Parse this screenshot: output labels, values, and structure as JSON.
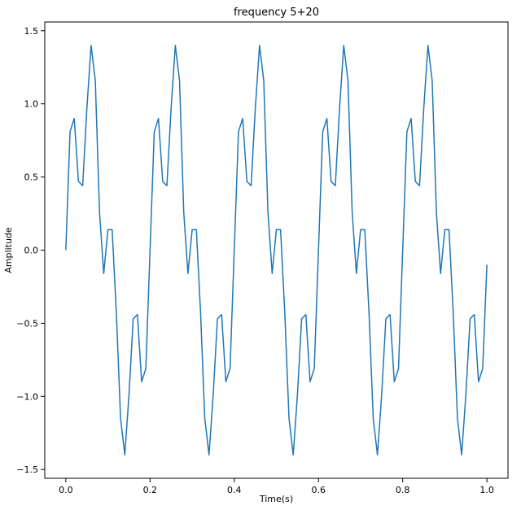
{
  "chart_data": {
    "type": "line",
    "title": "frequency 5+20",
    "xlabel": "Time(s)",
    "ylabel": "Amplitude",
    "xlim": [
      -0.05,
      1.05
    ],
    "ylim": [
      -1.56,
      1.56
    ],
    "x_ticks": [
      0.0,
      0.2,
      0.4,
      0.6,
      0.8,
      1.0
    ],
    "x_tick_labels": [
      "0.0",
      "0.2",
      "0.4",
      "0.6",
      "0.8",
      "1.0"
    ],
    "y_ticks": [
      -1.5,
      -1.0,
      -0.5,
      0.0,
      0.5,
      1.0,
      1.5
    ],
    "y_tick_labels": [
      "−1.5",
      "−1.0",
      "−0.5",
      "0.0",
      "0.5",
      "1.0",
      "1.5"
    ],
    "grid": false,
    "legend": "none",
    "series": [
      {
        "color": "#1f77b4",
        "x": [
          0.0,
          0.01,
          0.02,
          0.03,
          0.04,
          0.05,
          0.06,
          0.07,
          0.08,
          0.09,
          0.1,
          0.11,
          0.12,
          0.13,
          0.14,
          0.15,
          0.16,
          0.17,
          0.18,
          0.19,
          0.2,
          0.21,
          0.22,
          0.23,
          0.24,
          0.25,
          0.26,
          0.27,
          0.28,
          0.29,
          0.3,
          0.31,
          0.32,
          0.33,
          0.34,
          0.35,
          0.36,
          0.37,
          0.38,
          0.39,
          0.4,
          0.41,
          0.42,
          0.43,
          0.44,
          0.45,
          0.46,
          0.47,
          0.48,
          0.49,
          0.5,
          0.51,
          0.52,
          0.53,
          0.54,
          0.55,
          0.56,
          0.57,
          0.58,
          0.59,
          0.6,
          0.61,
          0.62,
          0.63,
          0.64,
          0.65,
          0.66,
          0.67,
          0.68,
          0.69,
          0.7,
          0.71,
          0.72,
          0.73,
          0.74,
          0.75,
          0.76,
          0.77,
          0.78,
          0.79,
          0.8,
          0.81,
          0.82,
          0.83,
          0.84,
          0.85,
          0.86,
          0.87,
          0.88,
          0.89,
          0.9,
          0.91,
          0.92,
          0.93,
          0.94,
          0.95,
          0.96,
          0.97,
          0.98,
          0.99,
          1.0
        ],
        "y": [
          0.0,
          0.81,
          0.9,
          0.47,
          0.44,
          0.97,
          1.4,
          1.16,
          0.26,
          -0.16,
          0.14,
          0.14,
          -0.43,
          -1.15,
          -1.4,
          -0.99,
          -0.47,
          -0.44,
          -0.9,
          -0.81,
          0.0,
          0.81,
          0.9,
          0.47,
          0.44,
          0.97,
          1.4,
          1.16,
          0.26,
          -0.16,
          0.14,
          0.14,
          -0.43,
          -1.15,
          -1.4,
          -0.99,
          -0.47,
          -0.44,
          -0.9,
          -0.81,
          0.0,
          0.81,
          0.9,
          0.47,
          0.44,
          0.97,
          1.4,
          1.16,
          0.26,
          -0.16,
          0.14,
          0.14,
          -0.43,
          -1.15,
          -1.4,
          -0.99,
          -0.47,
          -0.44,
          -0.9,
          -0.81,
          0.0,
          0.81,
          0.9,
          0.47,
          0.44,
          0.97,
          1.4,
          1.16,
          0.26,
          -0.16,
          0.14,
          0.14,
          -0.43,
          -1.15,
          -1.4,
          -0.99,
          -0.47,
          -0.44,
          -0.9,
          -0.81,
          0.0,
          0.81,
          0.9,
          0.47,
          0.44,
          0.97,
          1.4,
          1.16,
          0.26,
          -0.16,
          0.14,
          0.14,
          -0.43,
          -1.15,
          -1.4,
          -0.99,
          -0.47,
          -0.44,
          -0.9,
          -0.81,
          -0.1
        ]
      }
    ]
  }
}
